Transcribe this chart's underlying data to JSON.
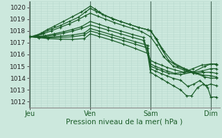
{
  "xlabel": "Pression niveau de la mer( hPa )",
  "ylim": [
    1011.5,
    1020.5
  ],
  "yticks": [
    1012,
    1013,
    1014,
    1015,
    1016,
    1017,
    1018,
    1019,
    1020
  ],
  "xtick_labels": [
    "Jeu",
    "Ven",
    "Sam",
    "Dim"
  ],
  "xtick_positions": [
    0,
    1,
    2,
    3
  ],
  "xlim": [
    -0.02,
    3.15
  ],
  "bg_color": "#cce8dd",
  "grid_color_minor": "#b8d8ce",
  "grid_color_major": "#a0c8bc",
  "line_color": "#1a5c28",
  "vline_color": "#446655",
  "dense_lines": [
    {
      "x": [
        0.0,
        0.08,
        0.18,
        0.28,
        0.4,
        0.55,
        0.7,
        0.85,
        1.0,
        1.08,
        1.15,
        1.25,
        1.38,
        1.5,
        1.65,
        1.8,
        1.95,
        2.0,
        2.08,
        2.18,
        2.3,
        2.45,
        2.6,
        2.75,
        2.9,
        3.0,
        3.1
      ],
      "y": [
        1017.5,
        1017.6,
        1017.8,
        1018.1,
        1018.4,
        1018.8,
        1019.2,
        1019.6,
        1020.1,
        1019.85,
        1019.6,
        1019.3,
        1019.0,
        1018.8,
        1018.55,
        1018.3,
        1018.1,
        1018.0,
        1017.4,
        1016.5,
        1015.5,
        1015.0,
        1014.7,
        1014.4,
        1014.1,
        1014.0,
        1014.0
      ]
    },
    {
      "x": [
        0.0,
        0.1,
        0.22,
        0.35,
        0.5,
        0.65,
        0.8,
        0.92,
        1.0,
        1.1,
        1.2,
        1.35,
        1.5,
        1.65,
        1.8,
        1.95,
        2.0,
        2.1,
        2.22,
        2.38,
        2.55,
        2.72,
        2.88,
        3.0,
        3.1
      ],
      "y": [
        1017.5,
        1017.6,
        1017.85,
        1018.15,
        1018.45,
        1018.8,
        1019.15,
        1019.6,
        1019.9,
        1019.65,
        1019.4,
        1019.1,
        1018.8,
        1018.55,
        1018.3,
        1018.1,
        1018.05,
        1017.3,
        1016.3,
        1015.3,
        1014.85,
        1014.5,
        1014.25,
        1014.2,
        1014.1
      ]
    },
    {
      "x": [
        0.0,
        0.1,
        0.22,
        0.35,
        0.5,
        0.65,
        0.8,
        0.92,
        1.0,
        1.12,
        1.25,
        1.4,
        1.55,
        1.7,
        1.85,
        2.0,
        2.1,
        2.22,
        2.38,
        2.55,
        2.72,
        2.88,
        3.0,
        3.1
      ],
      "y": [
        1017.5,
        1017.55,
        1017.75,
        1018.0,
        1018.3,
        1018.6,
        1018.95,
        1019.3,
        1019.5,
        1019.25,
        1019.0,
        1018.7,
        1018.45,
        1018.2,
        1017.95,
        1017.5,
        1016.8,
        1015.8,
        1015.0,
        1014.7,
        1014.4,
        1014.5,
        1014.5,
        1014.4
      ]
    },
    {
      "x": [
        0.0,
        0.12,
        0.25,
        0.4,
        0.55,
        0.7,
        0.85,
        1.0,
        1.15,
        1.3,
        1.5,
        1.7,
        1.88,
        2.0,
        2.08,
        2.18,
        2.28,
        2.4,
        2.55,
        2.7,
        2.85,
        3.0,
        3.1
      ],
      "y": [
        1017.5,
        1017.52,
        1017.6,
        1017.75,
        1017.92,
        1018.12,
        1018.35,
        1018.8,
        1018.55,
        1018.3,
        1018.0,
        1017.7,
        1017.45,
        1015.5,
        1015.3,
        1015.1,
        1014.9,
        1014.7,
        1014.5,
        1014.5,
        1014.6,
        1014.8,
        1014.8
      ]
    },
    {
      "x": [
        0.0,
        0.12,
        0.25,
        0.4,
        0.55,
        0.7,
        0.85,
        1.0,
        1.15,
        1.3,
        1.5,
        1.7,
        1.88,
        2.0,
        2.08,
        2.18,
        2.28,
        2.4,
        2.55,
        2.7,
        2.85,
        3.0,
        3.1
      ],
      "y": [
        1017.5,
        1017.5,
        1017.55,
        1017.65,
        1017.8,
        1017.98,
        1018.2,
        1018.5,
        1018.28,
        1018.06,
        1017.76,
        1017.46,
        1017.2,
        1015.2,
        1015.0,
        1014.8,
        1014.6,
        1014.4,
        1014.5,
        1014.8,
        1015.1,
        1015.2,
        1015.2
      ]
    },
    {
      "x": [
        0.0,
        0.15,
        0.3,
        0.5,
        0.7,
        0.9,
        1.0,
        1.15,
        1.35,
        1.55,
        1.75,
        1.95,
        2.0,
        2.1,
        2.2,
        2.3,
        2.5,
        2.7,
        2.9,
        3.0,
        3.1
      ],
      "y": [
        1017.5,
        1017.48,
        1017.48,
        1017.55,
        1017.65,
        1017.82,
        1018.2,
        1017.98,
        1017.68,
        1017.38,
        1017.08,
        1016.78,
        1015.0,
        1014.8,
        1014.6,
        1014.4,
        1014.3,
        1014.5,
        1015.0,
        1015.2,
        1015.15
      ]
    },
    {
      "x": [
        0.0,
        0.15,
        0.3,
        0.5,
        0.7,
        0.9,
        1.0,
        1.15,
        1.35,
        1.55,
        1.75,
        1.95,
        2.0,
        2.08,
        2.18,
        2.28,
        2.38,
        2.5,
        2.62,
        2.72,
        2.82,
        2.92,
        3.0,
        3.1
      ],
      "y": [
        1017.5,
        1017.45,
        1017.42,
        1017.44,
        1017.5,
        1017.65,
        1018.0,
        1017.78,
        1017.48,
        1017.18,
        1016.88,
        1016.55,
        1014.8,
        1014.6,
        1014.38,
        1014.18,
        1013.98,
        1013.82,
        1013.3,
        1013.5,
        1013.8,
        1013.35,
        1013.5,
        1013.35
      ]
    },
    {
      "x": [
        0.0,
        0.15,
        0.3,
        0.5,
        0.7,
        0.9,
        1.0,
        1.15,
        1.35,
        1.55,
        1.75,
        1.95,
        2.0,
        2.08,
        2.18,
        2.28,
        2.38,
        2.5,
        2.6,
        2.68,
        2.78,
        2.88,
        2.95,
        3.0,
        3.1
      ],
      "y": [
        1017.5,
        1017.42,
        1017.35,
        1017.3,
        1017.28,
        1017.35,
        1017.75,
        1017.52,
        1017.22,
        1016.88,
        1016.5,
        1016.1,
        1014.5,
        1014.25,
        1013.95,
        1013.65,
        1013.35,
        1013.0,
        1012.5,
        1012.5,
        1013.2,
        1013.5,
        1013.2,
        1012.4,
        1012.4
      ]
    }
  ]
}
